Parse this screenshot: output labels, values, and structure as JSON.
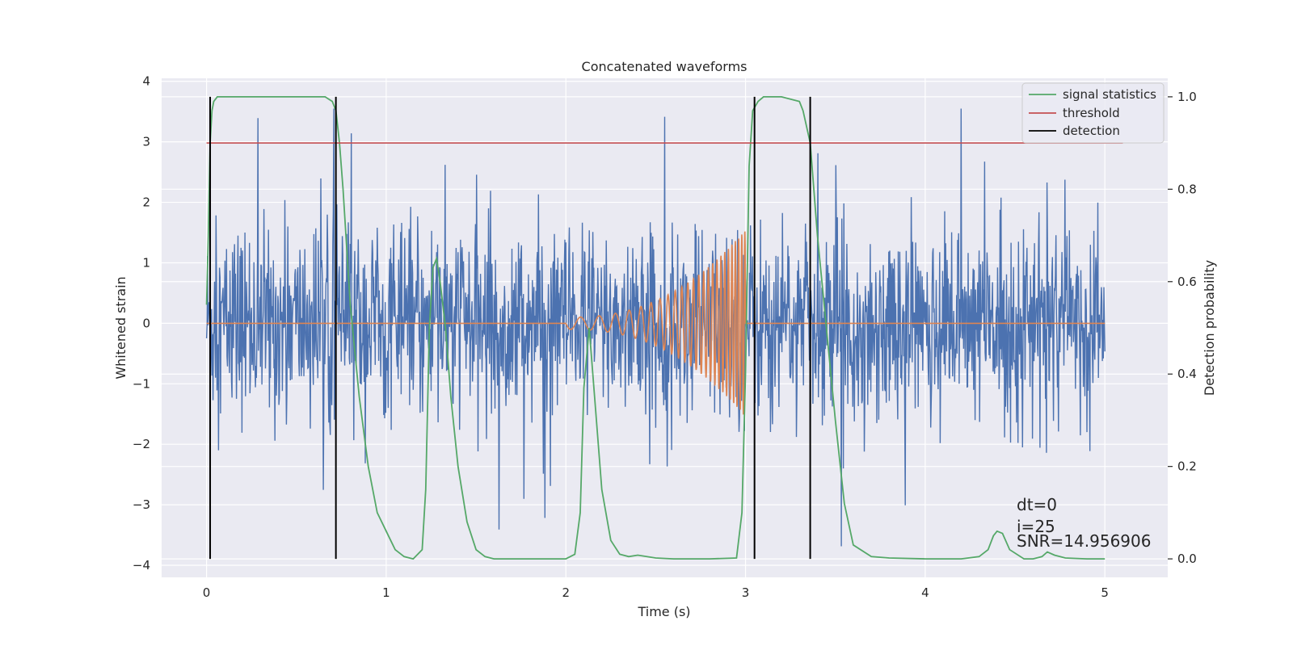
{
  "chart_data": {
    "type": "line",
    "title": "Concatenated waveforms",
    "xlabel": "Time (s)",
    "ylabel": "Whitened strain",
    "y2label": "Detection probability",
    "xlim": [
      -0.25,
      5.35
    ],
    "ylim": [
      -4.2,
      4.05
    ],
    "y2lim": [
      -0.04,
      1.04
    ],
    "xticks": [
      0,
      1,
      2,
      3,
      4,
      5
    ],
    "yticks": [
      -4,
      -3,
      -2,
      -1,
      0,
      1,
      2,
      3,
      4
    ],
    "y2ticks": [
      0.0,
      0.2,
      0.4,
      0.6,
      0.8,
      1.0
    ],
    "y2ticklabels": [
      "0.0",
      "0.2",
      "0.4",
      "0.6",
      "0.8",
      "1.0"
    ],
    "grid": true,
    "legend_position": "top-right",
    "colors": {
      "strain": "#4c72b0",
      "template": "#dd8452",
      "signal_statistics": "#55a868",
      "threshold": "#c44e52",
      "detection": "#000000",
      "background": "#eaeaf2",
      "grid": "#ffffff"
    },
    "series": [
      {
        "name": "signal statistics",
        "axis": "right",
        "x": [
          0.0,
          0.01,
          0.02,
          0.03,
          0.04,
          0.06,
          0.1,
          0.2,
          0.4,
          0.6,
          0.66,
          0.7,
          0.72,
          0.74,
          0.76,
          0.8,
          0.85,
          0.9,
          0.95,
          1.0,
          1.05,
          1.1,
          1.15,
          1.2,
          1.22,
          1.24,
          1.26,
          1.28,
          1.3,
          1.33,
          1.36,
          1.4,
          1.45,
          1.5,
          1.55,
          1.6,
          1.7,
          1.8,
          1.9,
          2.0,
          2.05,
          2.08,
          2.1,
          2.13,
          2.16,
          2.2,
          2.25,
          2.3,
          2.35,
          2.4,
          2.5,
          2.6,
          2.8,
          2.95,
          2.98,
          3.0,
          3.02,
          3.04,
          3.07,
          3.1,
          3.2,
          3.3,
          3.32,
          3.36,
          3.4,
          3.45,
          3.5,
          3.55,
          3.6,
          3.7,
          3.8,
          4.0,
          4.2,
          4.3,
          4.35,
          4.38,
          4.4,
          4.43,
          4.47,
          4.55,
          4.6,
          4.65,
          4.68,
          4.72,
          4.78,
          4.9,
          5.0
        ],
        "values": [
          0.55,
          0.7,
          0.9,
          0.97,
          0.99,
          1.0,
          1.0,
          1.0,
          1.0,
          1.0,
          1.0,
          0.99,
          0.97,
          0.9,
          0.8,
          0.55,
          0.35,
          0.2,
          0.1,
          0.06,
          0.02,
          0.005,
          0.0,
          0.02,
          0.15,
          0.5,
          0.63,
          0.65,
          0.6,
          0.5,
          0.35,
          0.2,
          0.08,
          0.02,
          0.005,
          0.0,
          0.0,
          0.0,
          0.0,
          0.0,
          0.01,
          0.1,
          0.37,
          0.5,
          0.35,
          0.15,
          0.04,
          0.01,
          0.005,
          0.008,
          0.002,
          0.0,
          0.0,
          0.002,
          0.1,
          0.4,
          0.85,
          0.97,
          0.99,
          1.0,
          1.0,
          0.99,
          0.97,
          0.9,
          0.7,
          0.5,
          0.3,
          0.12,
          0.03,
          0.005,
          0.002,
          0.0,
          0.0,
          0.005,
          0.02,
          0.05,
          0.06,
          0.055,
          0.02,
          0.0,
          0.0,
          0.005,
          0.015,
          0.008,
          0.002,
          0.0,
          0.0
        ]
      },
      {
        "name": "threshold",
        "axis": "right",
        "x": [
          0.0,
          5.1
        ],
        "values": [
          0.9,
          0.9
        ]
      },
      {
        "name": "detection",
        "axis": "right",
        "type": "vlines",
        "x": [
          0.02,
          0.72,
          3.05,
          3.36
        ],
        "ymin": 0.0,
        "ymax": 1.0
      }
    ],
    "strain_noise": {
      "x_range": [
        0.0,
        5.0
      ],
      "typical_range": [
        -1.5,
        1.5
      ],
      "extremes": [
        -3.9,
        3.55
      ]
    },
    "template_chirp": {
      "x_range": [
        2.0,
        3.0
      ],
      "baseline": 0.0,
      "start_amplitude": 0.1,
      "end_amplitude": 1.55,
      "start_cycles_per_s": 9,
      "end_cycles_per_s": 60
    },
    "annotations": [
      "dt=0",
      "i=25",
      "SNR=14.956906"
    ]
  }
}
